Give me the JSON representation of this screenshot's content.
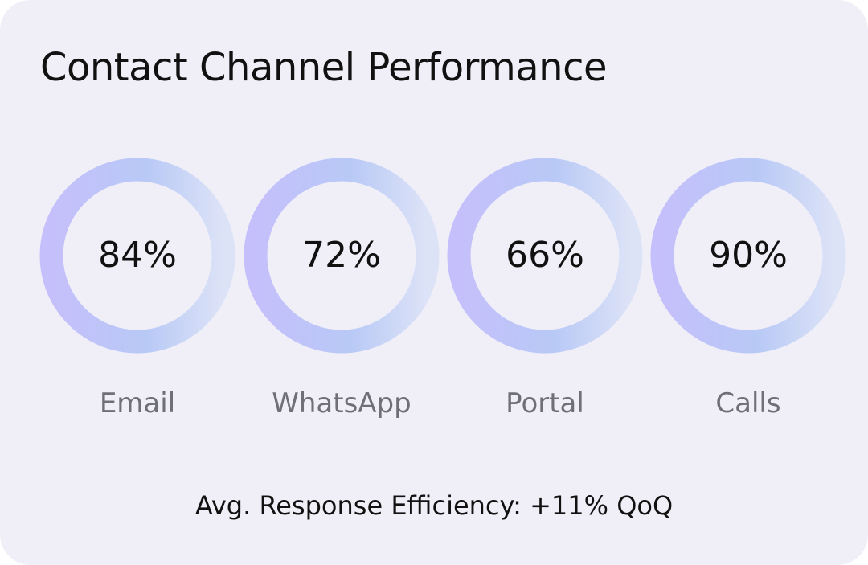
{
  "title": "Contact Channel Performance",
  "metrics": [
    {
      "value": "84%",
      "percent": 84,
      "label": "Email"
    },
    {
      "value": "72%",
      "percent": 72,
      "label": "WhatsApp"
    },
    {
      "value": "66%",
      "percent": 66,
      "label": "Portal"
    },
    {
      "value": "90%",
      "percent": 90,
      "label": "Calls"
    }
  ],
  "summary": "Avg. Response Efficiency: +11% QoQ",
  "colors": {
    "background": "#f0eff8",
    "ring_start": "#c5bffb",
    "ring_mid": "#b8c9f6",
    "ring_end": "#dde3f7",
    "text": "#111111",
    "label": "#6f6f78"
  }
}
